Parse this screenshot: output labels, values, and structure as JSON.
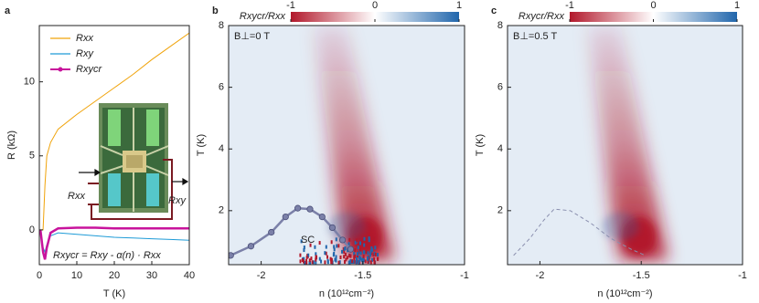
{
  "chart_data": [
    {
      "type": "line",
      "panel": "a",
      "xlabel": "T (K)",
      "ylabel": "R (kΩ)",
      "x": [
        0.3,
        1,
        1.5,
        2,
        3,
        5,
        10,
        15,
        20,
        25,
        30,
        35,
        40
      ],
      "series": [
        {
          "name": "Rxx",
          "color": "#f0a30a",
          "values": [
            0,
            0,
            3,
            5,
            5.9,
            6.8,
            7.8,
            8.7,
            9.6,
            10.5,
            11.5,
            12.4,
            13.3
          ]
        },
        {
          "name": "Rxy",
          "color": "#1e9bd7",
          "values": [
            0,
            -1.2,
            -1.5,
            -1,
            -0.4,
            -0.2,
            -0.3,
            -0.4,
            -0.5,
            -0.55,
            -0.6,
            -0.65,
            -0.7
          ]
        },
        {
          "name": "Rxycr",
          "color": "#c8139c",
          "values": [
            0,
            -1.5,
            -2,
            -1.2,
            -0.2,
            0.1,
            0.15,
            0.15,
            0.1,
            0.1,
            0.1,
            0.1,
            0.1
          ]
        }
      ],
      "xlim": [
        0,
        40
      ],
      "ylim": [
        -2.35,
        13.8
      ],
      "xticks": [
        0,
        10,
        20,
        30,
        40
      ],
      "yticks": [
        0,
        5,
        10
      ],
      "legend": "upper left",
      "inset_labels": [
        "Rxx",
        "Rxy"
      ],
      "equation": "Rxycr = Rxy - α(n) · Rxx"
    },
    {
      "type": "heatmap",
      "panel": "b",
      "xlabel": "n (10¹²cm⁻²)",
      "ylabel": "T (K)",
      "xlim": [
        -2.16,
        -1
      ],
      "ylim": [
        0.25,
        8
      ],
      "xticks": [
        -2,
        -1.5,
        -1
      ],
      "yticks": [
        2,
        4,
        6,
        8
      ],
      "field": "B⊥=0 T",
      "annotation": "SC",
      "colorbar": {
        "label": "Rxycr/Rxx",
        "lim": [
          -1,
          1
        ],
        "ticks": [
          -1,
          0,
          1
        ],
        "colors": [
          "#b2182b",
          "#ffffff",
          "#2166ac"
        ]
      },
      "dome": {
        "style": "markers",
        "color": "#7b80a8",
        "x": [
          -2.15,
          -2.05,
          -1.95,
          -1.88,
          -1.82,
          -1.76,
          -1.7,
          -1.65,
          -1.6,
          -1.56
        ],
        "y": [
          0.55,
          0.85,
          1.3,
          1.8,
          2.08,
          2.05,
          1.8,
          1.45,
          1.05,
          0.75
        ]
      }
    },
    {
      "type": "heatmap",
      "panel": "c",
      "xlabel": "n (10¹²cm⁻²)",
      "ylabel": "T (K)",
      "xlim": [
        -2.16,
        -1
      ],
      "ylim": [
        0.25,
        8
      ],
      "xticks": [
        -2,
        -1.5,
        -1
      ],
      "yticks": [
        2,
        4,
        6,
        8
      ],
      "field": "B⊥=0.5 T",
      "colorbar": {
        "label": "Rxycr/Rxx",
        "lim": [
          -1,
          1
        ],
        "ticks": [
          -1,
          0,
          1
        ],
        "colors": [
          "#b2182b",
          "#ffffff",
          "#2166ac"
        ]
      },
      "dome": {
        "style": "dashed",
        "color": "#8a8fae",
        "x": [
          -2.13,
          -2.05,
          -1.98,
          -1.93,
          -1.85,
          -1.75,
          -1.65,
          -1.55,
          -1.48
        ],
        "y": [
          0.55,
          1.1,
          1.7,
          2.05,
          2.0,
          1.6,
          1.1,
          0.75,
          0.55
        ]
      }
    }
  ]
}
